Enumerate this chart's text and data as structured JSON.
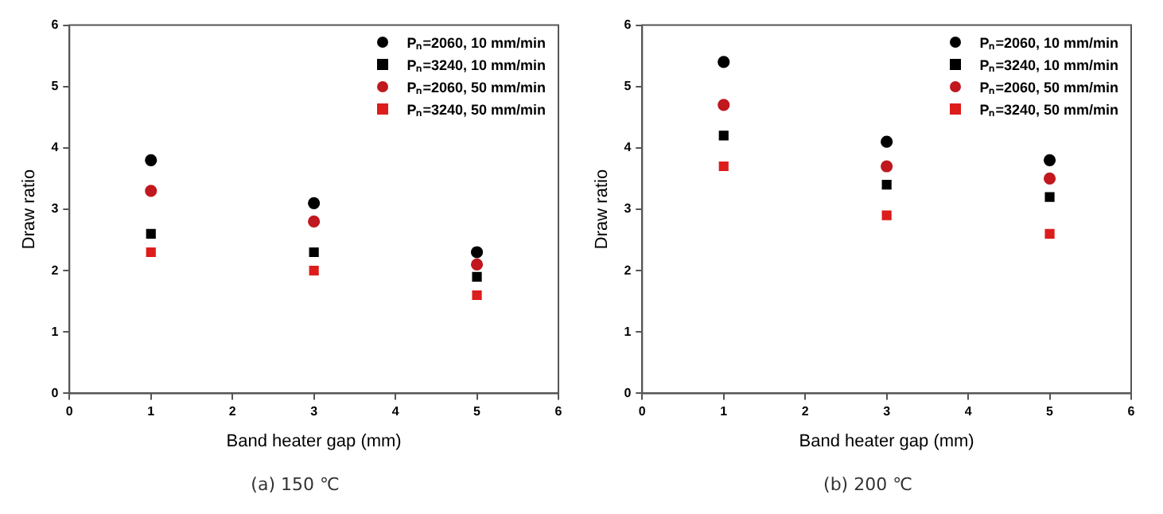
{
  "chart_data": [
    {
      "type": "scatter",
      "xlabel": "Band heater gap (mm)",
      "ylabel": "Draw ratio",
      "annotations": [
        "(a)  150 ℃"
      ],
      "x": [
        1,
        3,
        5
      ],
      "xlim": [
        0,
        6
      ],
      "xticks": [
        0,
        1,
        2,
        3,
        4,
        5,
        6
      ],
      "ylim": [
        0,
        6
      ],
      "yticks": [
        0,
        1,
        2,
        3,
        4,
        5,
        6
      ],
      "legend": "top right",
      "series": [
        {
          "name": "Pₙ=2060, 10 mm/min",
          "color": "#000000",
          "marker": "circle",
          "values": [
            3.8,
            3.1,
            2.3
          ]
        },
        {
          "name": "Pₙ=3240, 10 mm/min",
          "color": "#000000",
          "marker": "square",
          "values": [
            2.6,
            2.3,
            1.9
          ]
        },
        {
          "name": "Pₙ=2060, 50 mm/min",
          "color": "#c0181e",
          "marker": "circle",
          "values": [
            3.3,
            2.8,
            2.1
          ]
        },
        {
          "name": "Pₙ=3240, 50 mm/min",
          "color": "#dd1c1c",
          "marker": "square",
          "values": [
            2.3,
            2.0,
            1.6
          ]
        }
      ]
    },
    {
      "type": "scatter",
      "xlabel": "Band heater gap (mm)",
      "ylabel": "Draw ratio",
      "annotations": [
        "(b)  200 ℃"
      ],
      "x": [
        1,
        3,
        5
      ],
      "xlim": [
        0,
        6
      ],
      "xticks": [
        0,
        1,
        2,
        3,
        4,
        5,
        6
      ],
      "ylim": [
        0,
        6
      ],
      "yticks": [
        0,
        1,
        2,
        3,
        4,
        5,
        6
      ],
      "legend": "top right",
      "series": [
        {
          "name": "Pₙ=2060, 10 mm/min",
          "color": "#000000",
          "marker": "circle",
          "values": [
            5.4,
            4.1,
            3.8
          ]
        },
        {
          "name": "Pₙ=3240, 10 mm/min",
          "color": "#000000",
          "marker": "square",
          "values": [
            4.2,
            3.4,
            3.2
          ]
        },
        {
          "name": "Pₙ=2060, 50 mm/min",
          "color": "#c0181e",
          "marker": "circle",
          "values": [
            4.7,
            3.7,
            3.5
          ]
        },
        {
          "name": "Pₙ=3240, 50 mm/min",
          "color": "#dd1c1c",
          "marker": "square",
          "values": [
            3.7,
            2.9,
            2.6
          ]
        }
      ]
    }
  ]
}
